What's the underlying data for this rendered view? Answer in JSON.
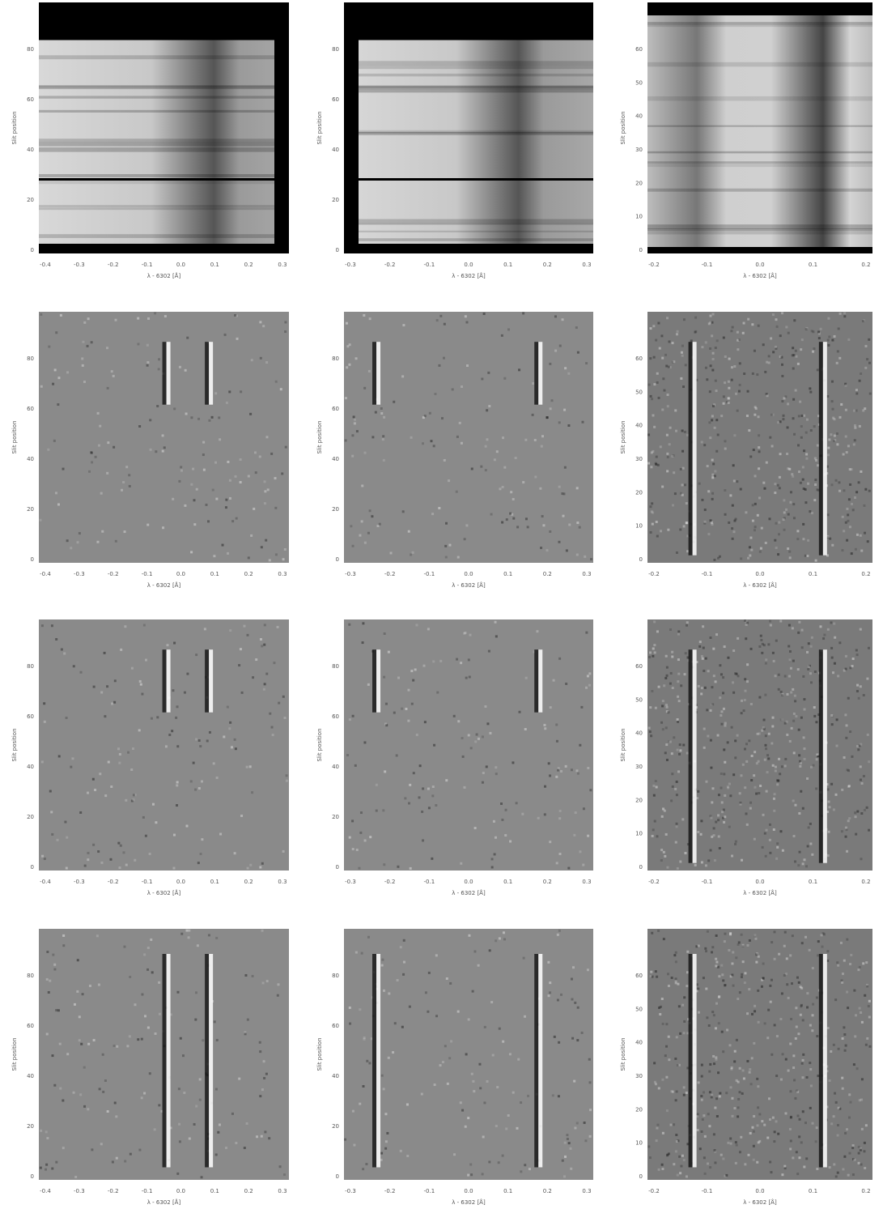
{
  "figure": {
    "panels": [
      {
        "x_label": "λ - 6302 [Å]",
        "y_label": "Slit position",
        "x_ticks": [
          "-0.4",
          "-0.3",
          "-0.2",
          "-0.1",
          "0.0",
          "0.1",
          "0.2",
          "0.3"
        ],
        "y_ticks": [
          "0",
          "20",
          "40",
          "60",
          "80"
        ]
      },
      {
        "x_label": "λ - 6302 [Å]",
        "y_label": "Slit position",
        "x_ticks": [
          "-0.3",
          "-0.2",
          "-0.1",
          "0.0",
          "0.1",
          "0.2",
          "0.3"
        ],
        "y_ticks": [
          "0",
          "20",
          "40",
          "60",
          "80"
        ]
      },
      {
        "x_label": "λ - 6302 [Å]",
        "y_label": "Slit position",
        "x_ticks": [
          "-0.2",
          "-0.1",
          "0.0",
          "0.1",
          "0.2"
        ],
        "y_ticks": [
          "0",
          "10",
          "20",
          "30",
          "40",
          "50",
          "60"
        ]
      },
      {
        "x_label": "λ - 6302 [Å]",
        "y_label": "Slit position",
        "x_ticks": [
          "-0.4",
          "-0.3",
          "-0.2",
          "-0.1",
          "0.0",
          "0.1",
          "0.2",
          "0.3"
        ],
        "y_ticks": [
          "0",
          "20",
          "40",
          "60",
          "80"
        ]
      },
      {
        "x_label": "λ - 6302 [Å]",
        "y_label": "Slit position",
        "x_ticks": [
          "-0.3",
          "-0.2",
          "-0.1",
          "0.0",
          "0.1",
          "0.2",
          "0.3"
        ],
        "y_ticks": [
          "0",
          "20",
          "40",
          "60",
          "80"
        ]
      },
      {
        "x_label": "λ - 6302 [Å]",
        "y_label": "Slit position",
        "x_ticks": [
          "-0.2",
          "-0.1",
          "0.0",
          "0.1",
          "0.2"
        ],
        "y_ticks": [
          "0",
          "10",
          "20",
          "30",
          "40",
          "50",
          "60"
        ]
      },
      {
        "x_label": "λ - 6302 [Å]",
        "y_label": "Slit position",
        "x_ticks": [
          "-0.4",
          "-0.3",
          "-0.2",
          "-0.1",
          "0.0",
          "0.1",
          "0.2",
          "0.3"
        ],
        "y_ticks": [
          "0",
          "20",
          "40",
          "60",
          "80"
        ]
      },
      {
        "x_label": "λ - 6302 [Å]",
        "y_label": "Slit position",
        "x_ticks": [
          "-0.3",
          "-0.2",
          "-0.1",
          "0.0",
          "0.1",
          "0.2",
          "0.3"
        ],
        "y_ticks": [
          "0",
          "20",
          "40",
          "60",
          "80"
        ]
      },
      {
        "x_label": "λ - 6302 [Å]",
        "y_label": "Slit position",
        "x_ticks": [
          "-0.2",
          "-0.1",
          "0.0",
          "0.1",
          "0.2"
        ],
        "y_ticks": [
          "0",
          "10",
          "20",
          "30",
          "40",
          "50",
          "60"
        ]
      },
      {
        "x_label": "λ - 6302 [Å]",
        "y_label": "Slit position",
        "x_ticks": [
          "-0.4",
          "-0.3",
          "-0.2",
          "-0.1",
          "0.0",
          "0.1",
          "0.2",
          "0.3"
        ],
        "y_ticks": [
          "0",
          "20",
          "40",
          "60",
          "80"
        ]
      },
      {
        "x_label": "λ - 6302 [Å]",
        "y_label": "Slit position",
        "x_ticks": [
          "-0.3",
          "-0.2",
          "-0.1",
          "0.0",
          "0.1",
          "0.2",
          "0.3"
        ],
        "y_ticks": [
          "0",
          "20",
          "40",
          "60",
          "80"
        ]
      },
      {
        "x_label": "λ - 6302 [Å]",
        "y_label": "Slit position",
        "x_ticks": [
          "-0.2",
          "-0.1",
          "0.0",
          "0.1",
          "0.2"
        ],
        "y_ticks": [
          "0",
          "10",
          "20",
          "30",
          "40",
          "50",
          "60"
        ]
      }
    ]
  }
}
